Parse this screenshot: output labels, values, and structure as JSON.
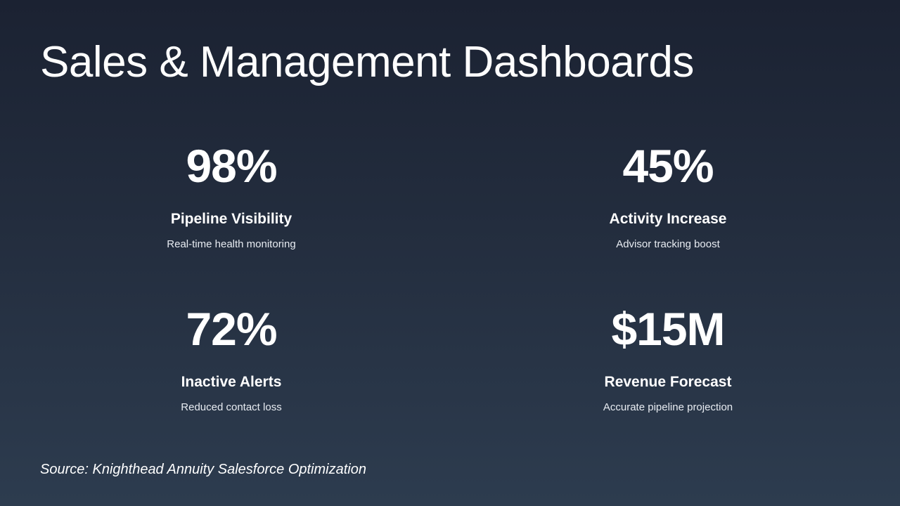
{
  "title": "Sales & Management Dashboards",
  "stats": [
    {
      "value": "98%",
      "label": "Pipeline Visibility",
      "description": "Real-time health monitoring"
    },
    {
      "value": "45%",
      "label": "Activity Increase",
      "description": "Advisor tracking boost"
    },
    {
      "value": "72%",
      "label": "Inactive Alerts",
      "description": "Reduced contact loss"
    },
    {
      "value": "$15M",
      "label": "Revenue Forecast",
      "description": "Accurate pipeline projection"
    }
  ],
  "source": "Source: Knighthead Annuity Salesforce Optimization",
  "colors": {
    "background_top": "#1b2232",
    "background_bottom": "#2d3c4f",
    "text": "#ffffff"
  }
}
